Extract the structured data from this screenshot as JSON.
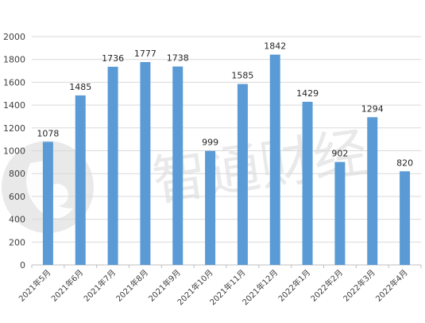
{
  "watermark": {
    "text": "智通财经",
    "mark": "logo-circle"
  },
  "colors": {
    "bar": "#5b9bd5",
    "grid": "#d9d9d9",
    "axis": "#bfbfbf",
    "watermark": "#e9e9e9"
  },
  "chart_data": {
    "type": "bar",
    "title": "",
    "xlabel": "",
    "ylabel": "",
    "categories": [
      "2021年5月",
      "2021年6月",
      "2021年7月",
      "2021年8月",
      "2021年9月",
      "2021年10月",
      "2021年11月",
      "2021年12月",
      "2022年1月",
      "2022年2月",
      "2022年3月",
      "2022年4月"
    ],
    "values": [
      1078,
      1485,
      1736,
      1777,
      1738,
      999,
      1585,
      1842,
      1429,
      902,
      1294,
      820
    ],
    "ylim": [
      0,
      2000
    ],
    "yticks": [
      0,
      200,
      400,
      600,
      800,
      1000,
      1200,
      1400,
      1600,
      1800,
      2000
    ],
    "grid": true,
    "legend": "none"
  }
}
